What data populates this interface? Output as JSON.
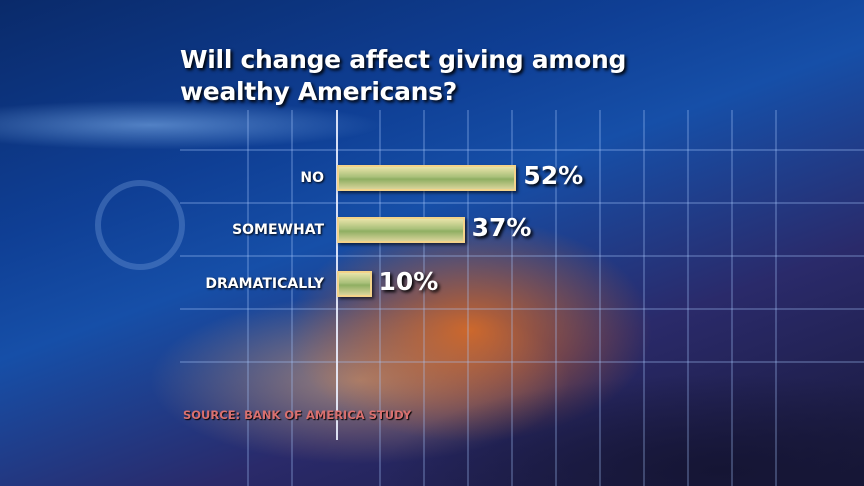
{
  "chart_data": {
    "type": "bar",
    "orientation": "horizontal",
    "title": "Will change affect giving among wealthy Americans?",
    "categories": [
      "NO",
      "SOMEWHAT",
      "DRAMATICALLY"
    ],
    "values": [
      52,
      37,
      10
    ],
    "value_labels": [
      "52%",
      "37%",
      "10%"
    ],
    "unit": "%",
    "source": "SOURCE: BANK OF AMERICA STUDY",
    "bar_color": "#a9c07a",
    "bar_border_color": "#f3d38a"
  }
}
